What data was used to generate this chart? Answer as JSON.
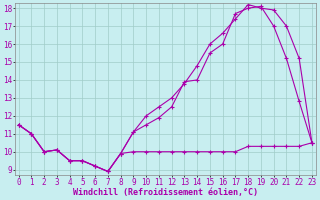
{
  "xlabel": "Windchill (Refroidissement éolien,°C)",
  "bg_color": "#c8eef0",
  "grid_color": "#a0ccc8",
  "line_color": "#aa00aa",
  "x_min": 0,
  "x_max": 23,
  "y_min": 9,
  "y_max": 18,
  "line1_x": [
    0,
    1,
    2,
    3,
    4,
    5,
    6,
    7,
    8,
    9,
    10,
    11,
    12,
    13,
    14,
    15,
    16,
    17,
    18,
    19,
    20,
    21,
    22,
    23
  ],
  "line1_y": [
    11.5,
    11.0,
    10.0,
    10.1,
    9.5,
    9.5,
    9.2,
    8.9,
    9.9,
    11.1,
    11.5,
    11.9,
    12.5,
    13.9,
    14.0,
    15.5,
    16.0,
    17.7,
    18.0,
    18.1,
    17.0,
    15.2,
    12.8,
    10.5
  ],
  "line2_x": [
    0,
    1,
    2,
    3,
    4,
    5,
    6,
    7,
    8,
    9,
    10,
    11,
    12,
    13,
    14,
    15,
    16,
    17,
    18,
    19,
    20,
    21,
    22,
    23
  ],
  "line2_y": [
    11.5,
    11.0,
    10.0,
    10.1,
    9.5,
    9.5,
    9.2,
    8.9,
    9.9,
    11.1,
    12.0,
    12.5,
    13.0,
    13.8,
    14.8,
    16.0,
    16.6,
    17.4,
    18.2,
    18.0,
    17.9,
    17.0,
    15.2,
    10.5
  ],
  "line3_x": [
    0,
    1,
    2,
    3,
    4,
    5,
    6,
    7,
    8,
    9,
    10,
    11,
    12,
    13,
    14,
    15,
    16,
    17,
    18,
    19,
    20,
    21,
    22,
    23
  ],
  "line3_y": [
    11.5,
    11.0,
    10.0,
    10.1,
    9.5,
    9.5,
    9.2,
    8.9,
    9.9,
    10.0,
    10.0,
    10.0,
    10.0,
    10.0,
    10.0,
    10.0,
    10.0,
    10.0,
    10.3,
    10.3,
    10.3,
    10.3,
    10.3,
    10.5
  ],
  "marker": "+",
  "markersize": 3,
  "linewidth": 0.8,
  "xlabel_fontsize": 6,
  "tick_fontsize": 5.5
}
